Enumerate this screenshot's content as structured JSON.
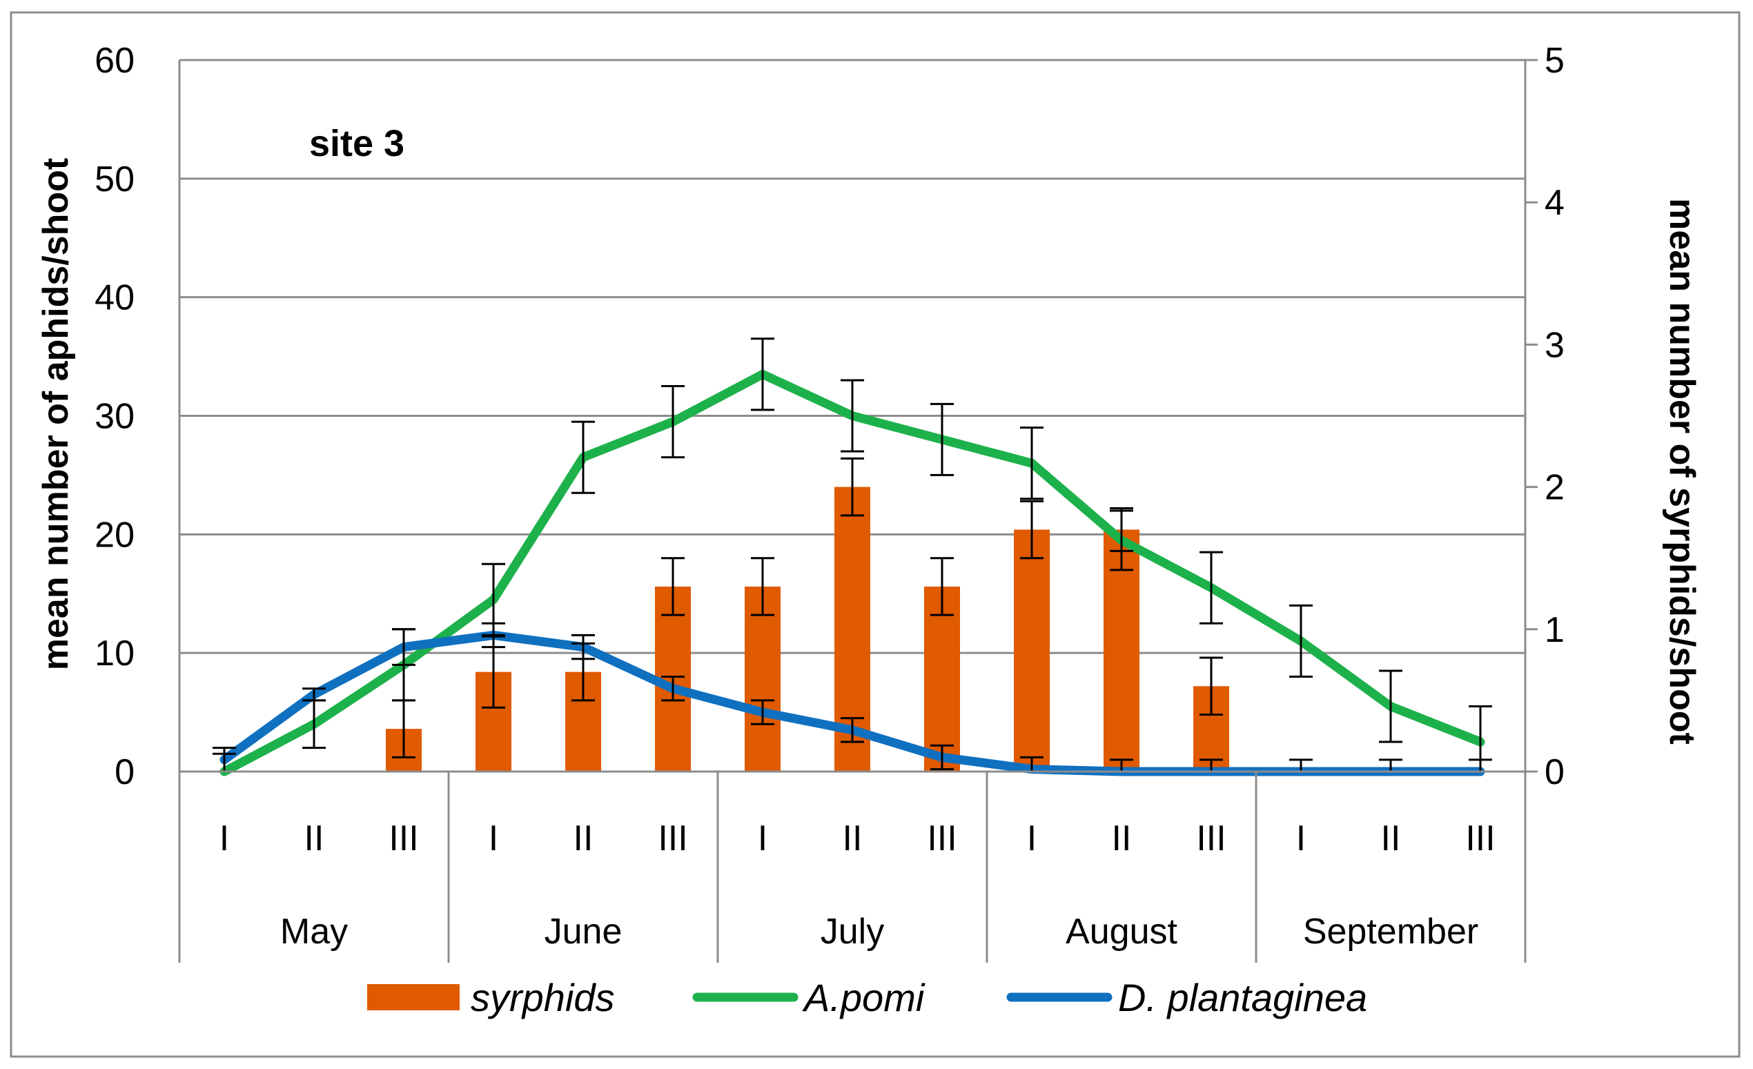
{
  "chart_data": {
    "type": "bar+line",
    "annotation": "site 3",
    "ylabel_left": "mean number of aphids/shoot",
    "ylabel_right": "mean number of syrphids/shoot",
    "ylim_left": [
      0,
      60
    ],
    "ylim_right": [
      0,
      5
    ],
    "yticks_left": [
      "0",
      "10",
      "20",
      "30",
      "40",
      "50",
      "60"
    ],
    "yticks_right": [
      "0",
      "1",
      "2",
      "3",
      "4",
      "5"
    ],
    "grid": true,
    "months": [
      {
        "label": "May",
        "decades": [
          "I",
          "II",
          "III"
        ]
      },
      {
        "label": "June",
        "decades": [
          "I",
          "II",
          "III"
        ]
      },
      {
        "label": "July",
        "decades": [
          "I",
          "II",
          "III"
        ]
      },
      {
        "label": "August",
        "decades": [
          "I",
          "II",
          "III"
        ]
      },
      {
        "label": "September",
        "decades": [
          "I",
          "II",
          "III"
        ]
      }
    ],
    "series": [
      {
        "name": "syrphids",
        "type": "bar",
        "axis": "right",
        "color": "#E05A00",
        "values": [
          0,
          0,
          0.3,
          0.7,
          0.7,
          1.3,
          1.3,
          2.0,
          1.3,
          1.7,
          1.7,
          0.6,
          0,
          0,
          0
        ],
        "errors": [
          0,
          0,
          0.2,
          0.25,
          0.2,
          0.2,
          0.2,
          0.2,
          0.2,
          0.2,
          0.15,
          0.2,
          0,
          0,
          0
        ]
      },
      {
        "name": "A.pomi",
        "type": "line",
        "axis": "left",
        "color": "#1DB14B",
        "values": [
          0,
          4,
          9,
          14.5,
          26.5,
          29.5,
          33.5,
          30,
          28,
          26,
          19.5,
          15.5,
          11,
          5.5,
          2.5
        ],
        "errors": [
          1.5,
          2,
          3,
          3,
          3,
          3,
          3,
          3,
          3,
          3,
          2.5,
          3,
          3,
          3,
          3
        ]
      },
      {
        "name": "D. plantaginea",
        "type": "line",
        "axis": "left",
        "color": "#1070C0",
        "values": [
          1,
          6.5,
          10.5,
          11.5,
          10.5,
          7,
          5,
          3.5,
          1.2,
          0.2,
          0,
          0,
          0,
          0,
          0
        ],
        "errors": [
          1,
          0.5,
          1.5,
          1,
          1,
          1,
          1,
          1,
          1,
          1,
          1,
          1,
          1,
          1,
          1
        ]
      }
    ],
    "legend": {
      "placement": "bottom",
      "entries": [
        "syrphids",
        "A.pomi",
        "D. plantaginea"
      ]
    }
  }
}
